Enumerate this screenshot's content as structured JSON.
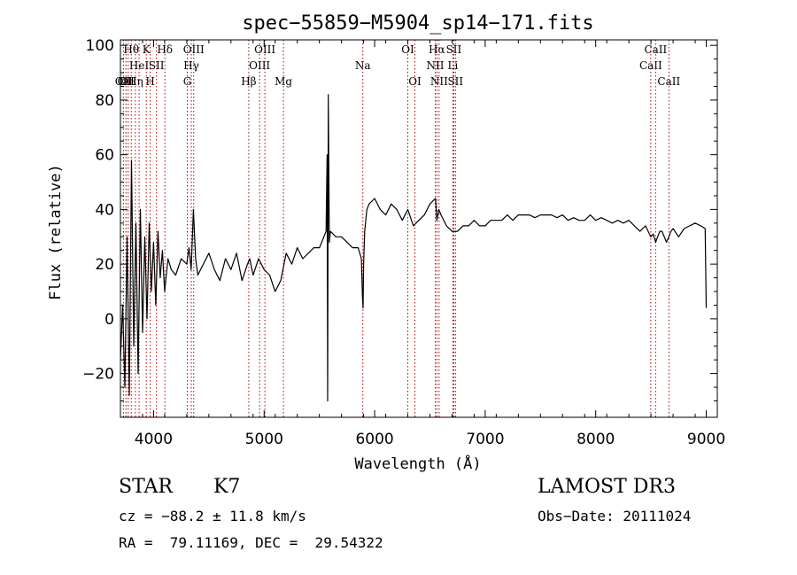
{
  "chart_data": {
    "type": "line",
    "title": "spec−55859−M5904_sp14−171.fits",
    "xlabel": "Wavelength (Å)",
    "ylabel": "Flux (relative)",
    "xlim": [
      3700,
      9100
    ],
    "ylim": [
      -36,
      102
    ],
    "x_ticks": [
      4000,
      5000,
      6000,
      7000,
      8000,
      9000
    ],
    "x_tick_labels": [
      "4000",
      "5000",
      "6000",
      "7000",
      "8000",
      "9000"
    ],
    "y_ticks": [
      -20,
      0,
      20,
      40,
      60,
      80,
      100
    ],
    "y_tick_labels": [
      "−20",
      "0",
      "20",
      "40",
      "60",
      "80",
      "100"
    ],
    "grid": false,
    "line_color": "#000000",
    "marker_color": "#b00000",
    "series": [
      {
        "name": "flux",
        "x": [
          3700,
          3720,
          3740,
          3760,
          3780,
          3800,
          3820,
          3840,
          3860,
          3880,
          3900,
          3920,
          3940,
          3960,
          3980,
          4000,
          4020,
          4040,
          4060,
          4080,
          4100,
          4130,
          4160,
          4200,
          4250,
          4300,
          4320,
          4340,
          4360,
          4380,
          4400,
          4450,
          4500,
          4550,
          4600,
          4650,
          4700,
          4750,
          4800,
          4850,
          4870,
          4900,
          4950,
          5000,
          5050,
          5100,
          5150,
          5200,
          5250,
          5300,
          5350,
          5400,
          5450,
          5500,
          5540,
          5560,
          5570,
          5575,
          5580,
          5590,
          5600,
          5650,
          5700,
          5750,
          5800,
          5850,
          5880,
          5890,
          5895,
          5900,
          5910,
          5930,
          5950,
          6000,
          6050,
          6100,
          6150,
          6200,
          6250,
          6300,
          6350,
          6400,
          6450,
          6500,
          6550,
          6563,
          6580,
          6600,
          6650,
          6700,
          6750,
          6800,
          6850,
          6900,
          6950,
          7000,
          7050,
          7100,
          7150,
          7200,
          7250,
          7300,
          7350,
          7400,
          7450,
          7500,
          7550,
          7600,
          7650,
          7700,
          7750,
          7800,
          7850,
          7900,
          7950,
          8000,
          8050,
          8100,
          8150,
          8200,
          8250,
          8300,
          8350,
          8400,
          8450,
          8498,
          8520,
          8542,
          8560,
          8580,
          8600,
          8640,
          8662,
          8680,
          8700,
          8750,
          8800,
          8850,
          8900,
          8950,
          8990,
          9000
        ],
        "y": [
          -15,
          5,
          -25,
          30,
          -28,
          58,
          -10,
          35,
          -20,
          40,
          -5,
          30,
          0,
          35,
          10,
          28,
          5,
          32,
          15,
          25,
          10,
          22,
          18,
          16,
          22,
          20,
          26,
          18,
          40,
          22,
          16,
          20,
          24,
          18,
          14,
          22,
          18,
          24,
          14,
          20,
          22,
          16,
          22,
          18,
          16,
          10,
          14,
          24,
          20,
          26,
          22,
          24,
          26,
          26,
          30,
          32,
          60,
          -30,
          82,
          28,
          32,
          30,
          30,
          28,
          26,
          26,
          22,
          8,
          4,
          20,
          32,
          40,
          42,
          44,
          40,
          38,
          42,
          40,
          36,
          40,
          34,
          36,
          38,
          42,
          44,
          36,
          40,
          38,
          34,
          32,
          32,
          34,
          34,
          36,
          34,
          34,
          36,
          36,
          36,
          38,
          36,
          38,
          38,
          38,
          37,
          38,
          38,
          38,
          37,
          38,
          36,
          37,
          36,
          36,
          38,
          36,
          37,
          36,
          35,
          36,
          35,
          36,
          34,
          32,
          34,
          30,
          31,
          28,
          30,
          32,
          32,
          28,
          30,
          32,
          33,
          30,
          33,
          34,
          35,
          34,
          33,
          4
        ]
      }
    ],
    "annotations": [
      {
        "line": 3727,
        "label": "OII",
        "row": 2
      },
      {
        "line": 3750,
        "label": "OII",
        "row": 2
      },
      {
        "line": 3770,
        "label": "OII",
        "row": 2
      },
      {
        "line": 3798,
        "label": "Hθ",
        "row": 0
      },
      {
        "line": 3835,
        "label": "Hη",
        "row": 2
      },
      {
        "line": 3869,
        "label": "HeI",
        "row": 1
      },
      {
        "line": 3934,
        "label": "K",
        "row": 0
      },
      {
        "line": 3969,
        "label": "H",
        "row": 2
      },
      {
        "line": 4026,
        "label": "SII",
        "row": 1
      },
      {
        "line": 4102,
        "label": "Hδ",
        "row": 0
      },
      {
        "line": 4305,
        "label": "G",
        "row": 2
      },
      {
        "line": 4341,
        "label": "Hγ",
        "row": 1
      },
      {
        "line": 4363,
        "label": "OIII",
        "row": 0
      },
      {
        "line": 4861,
        "label": "Hβ",
        "row": 2
      },
      {
        "line": 4959,
        "label": "OIII",
        "row": 1
      },
      {
        "line": 5007,
        "label": "OIII",
        "row": 0
      },
      {
        "line": 5175,
        "label": "Mg",
        "row": 2
      },
      {
        "line": 5893,
        "label": "Na",
        "row": 1
      },
      {
        "line": 6300,
        "label": "OI",
        "row": 0
      },
      {
        "line": 6364,
        "label": "OI",
        "row": 2
      },
      {
        "line": 6548,
        "label": "NII",
        "row": 1
      },
      {
        "line": 6563,
        "label": "Hα",
        "row": 0
      },
      {
        "line": 6583,
        "label": "NII",
        "row": 2
      },
      {
        "line": 6708,
        "label": "Li",
        "row": 1
      },
      {
        "line": 6716,
        "label": "SII",
        "row": 0
      },
      {
        "line": 6731,
        "label": "SII",
        "row": 2
      },
      {
        "line": 8498,
        "label": "CaII",
        "row": 1
      },
      {
        "line": 8542,
        "label": "CaII",
        "row": 0
      },
      {
        "line": 8662,
        "label": "CaII",
        "row": 2
      }
    ]
  },
  "info": {
    "object_class": "STAR",
    "subclass": "K7",
    "survey": "LAMOST DR3",
    "velocity": "cz = −88.2 ± 11.8 km/s",
    "obs_date": "Obs−Date: 20111024",
    "coords": "RA =  79.11169, DEC =  29.54322"
  }
}
